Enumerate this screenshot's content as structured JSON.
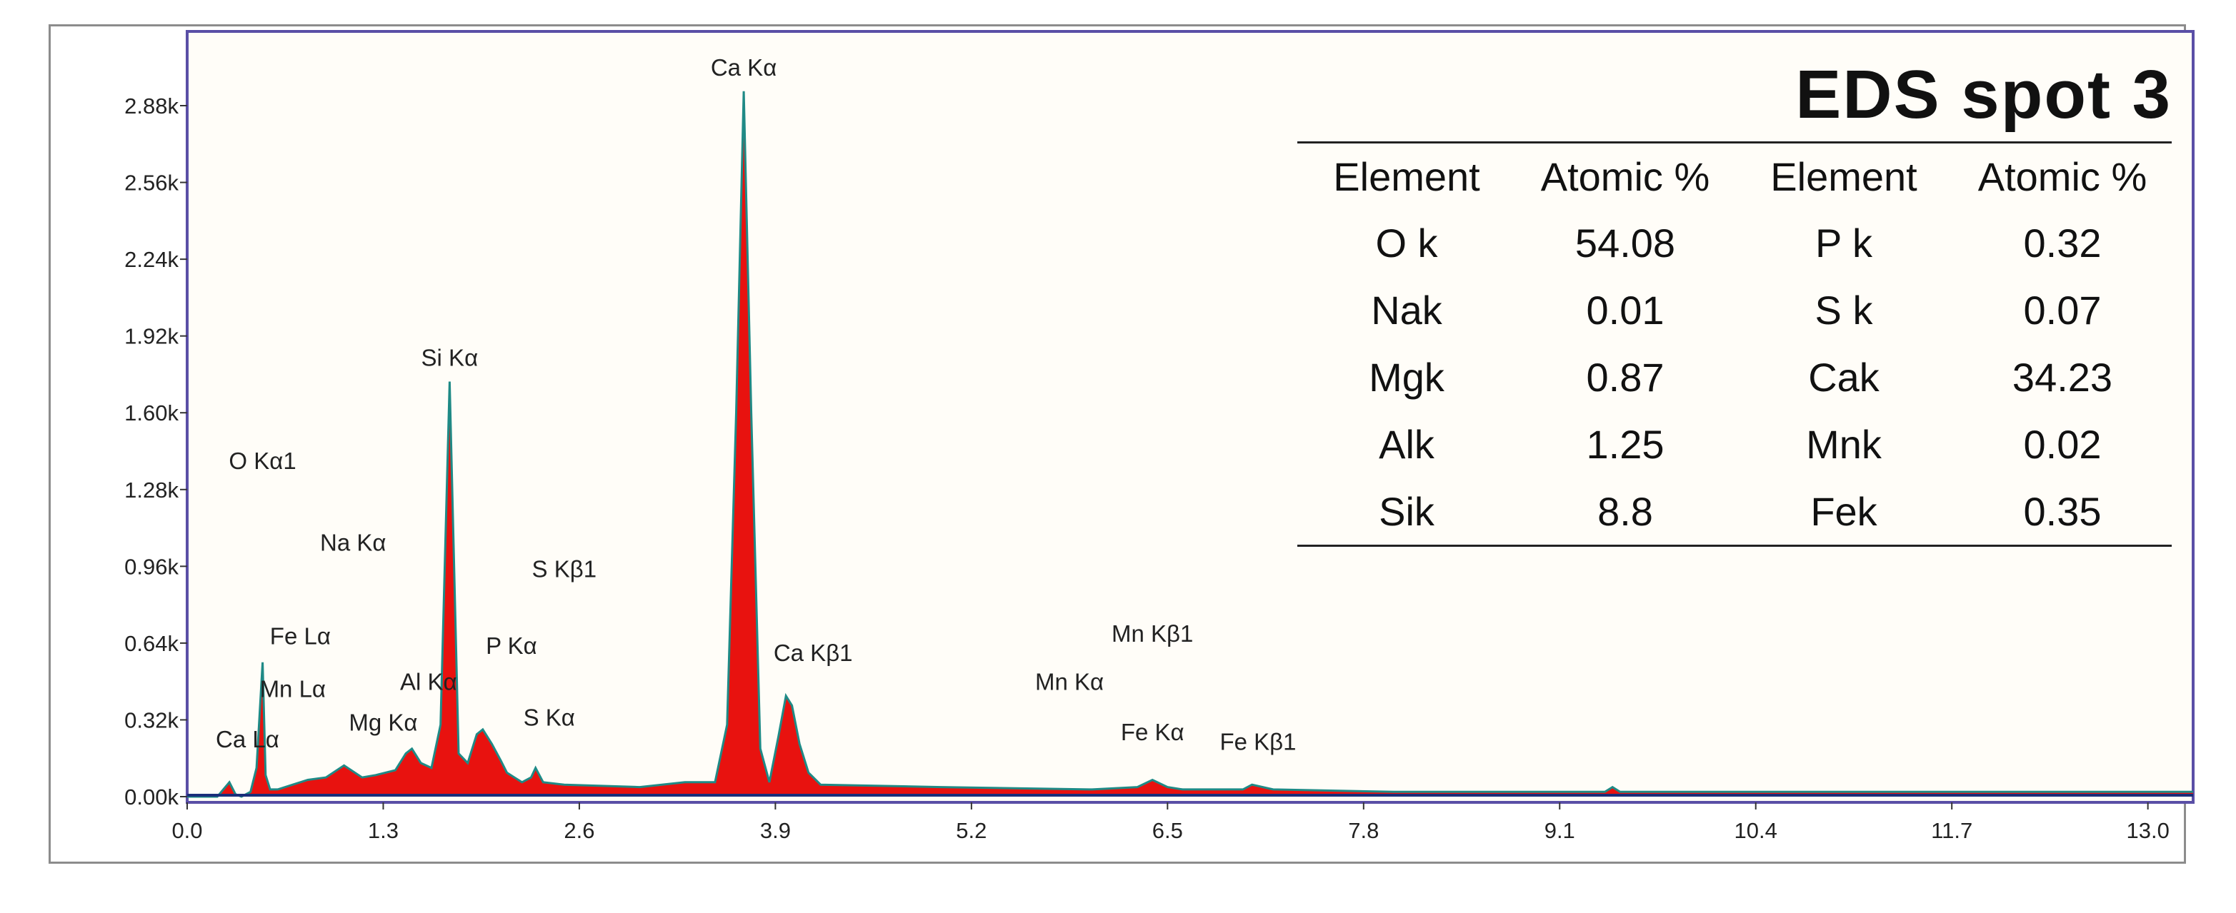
{
  "chart_data": {
    "type": "line",
    "title": "EDS spot 3",
    "xlabel": "",
    "ylabel": "",
    "xlim": [
      0.0,
      13.3
    ],
    "ylim": [
      0.0,
      2.88
    ],
    "x_ticks": [
      "0.0",
      "1.3",
      "2.6",
      "3.9",
      "5.2",
      "6.5",
      "7.8",
      "9.1",
      "10.4",
      "11.7",
      "13.0"
    ],
    "y_ticks": [
      "0.00k",
      "0.32k",
      "0.64k",
      "0.96k",
      "1.28k",
      "1.60k",
      "1.92k",
      "2.24k",
      "2.56k",
      "2.88k"
    ],
    "series": [
      {
        "x": [
          0.0,
          0.2,
          0.28,
          0.32,
          0.36,
          0.42,
          0.46,
          0.5,
          0.52,
          0.55,
          0.6,
          0.7,
          0.8,
          0.92,
          1.04,
          1.16,
          1.25,
          1.38,
          1.45,
          1.49,
          1.55,
          1.62,
          1.68,
          1.74,
          1.8,
          1.86,
          1.92,
          1.96,
          2.02,
          2.08,
          2.12,
          2.17,
          2.22,
          2.28,
          2.31,
          2.36,
          2.5,
          3.0,
          3.3,
          3.4,
          3.5,
          3.58,
          3.64,
          3.69,
          3.74,
          3.8,
          3.86,
          3.92,
          3.97,
          4.01,
          4.06,
          4.12,
          4.2,
          5.0,
          6.0,
          6.3,
          6.4,
          6.5,
          6.6,
          7.0,
          7.06,
          7.2,
          8.0,
          9.0,
          9.4,
          9.45,
          9.5,
          10.0,
          11.0,
          12.0,
          13.3
        ],
        "y": [
          0.0,
          0.0,
          0.06,
          0.01,
          0.0,
          0.02,
          0.12,
          0.56,
          0.09,
          0.03,
          0.03,
          0.05,
          0.07,
          0.08,
          0.13,
          0.08,
          0.09,
          0.11,
          0.18,
          0.2,
          0.14,
          0.12,
          0.3,
          1.73,
          0.18,
          0.14,
          0.26,
          0.28,
          0.22,
          0.15,
          0.1,
          0.08,
          0.06,
          0.08,
          0.12,
          0.06,
          0.05,
          0.04,
          0.06,
          0.06,
          0.06,
          0.3,
          1.6,
          2.94,
          1.6,
          0.2,
          0.06,
          0.25,
          0.42,
          0.38,
          0.22,
          0.1,
          0.05,
          0.04,
          0.03,
          0.04,
          0.07,
          0.04,
          0.03,
          0.03,
          0.05,
          0.03,
          0.02,
          0.02,
          0.02,
          0.04,
          0.02,
          0.02,
          0.02,
          0.02,
          0.02
        ]
      }
    ],
    "annotations": [
      {
        "text": "Ca Kα",
        "x": 3.69,
        "y": 2.94
      },
      {
        "text": "Si Kα",
        "x": 1.74,
        "y": 1.73
      },
      {
        "text": "O  Kα1",
        "x": 0.5,
        "y": 1.3
      },
      {
        "text": "Na Kα",
        "x": 1.1,
        "y": 0.96
      },
      {
        "text": "S  Kβ1",
        "x": 2.5,
        "y": 0.85
      },
      {
        "text": "Fe Lα",
        "x": 0.75,
        "y": 0.57
      },
      {
        "text": "P  Kα",
        "x": 2.15,
        "y": 0.53
      },
      {
        "text": "Ca Kβ1",
        "x": 4.15,
        "y": 0.5
      },
      {
        "text": "Mn Kβ1",
        "x": 6.4,
        "y": 0.58
      },
      {
        "text": "Al Kα",
        "x": 1.6,
        "y": 0.38
      },
      {
        "text": "Mn Lα",
        "x": 0.7,
        "y": 0.35
      },
      {
        "text": "Mn Kα",
        "x": 5.85,
        "y": 0.38
      },
      {
        "text": "Mg Kα",
        "x": 1.3,
        "y": 0.21
      },
      {
        "text": "S  Kα",
        "x": 2.4,
        "y": 0.23
      },
      {
        "text": "Ca Lα",
        "x": 0.4,
        "y": 0.14
      },
      {
        "text": "Fe Kα",
        "x": 6.4,
        "y": 0.17
      },
      {
        "text": "Fe Kβ1",
        "x": 7.1,
        "y": 0.13
      }
    ]
  },
  "eds_title": "EDS spot 3",
  "eds_table": {
    "headers": [
      "Element",
      "Atomic %",
      "Element",
      "Atomic %"
    ],
    "rows": [
      [
        "O k",
        "54.08",
        "P k",
        "0.32"
      ],
      [
        "Nak",
        "0.01",
        "S k",
        "0.07"
      ],
      [
        "Mgk",
        "0.87",
        "Cak",
        "34.23"
      ],
      [
        "Alk",
        "1.25",
        "Mnk",
        "0.02"
      ],
      [
        "Sik",
        "8.8",
        "Fek",
        "0.35"
      ]
    ]
  },
  "colors": {
    "fill": "#e8120f",
    "line": "#1f8a86",
    "baseline": "#1a2e7a",
    "plot_border": "#5a4fa6",
    "plot_bg": "#fffdf8"
  }
}
